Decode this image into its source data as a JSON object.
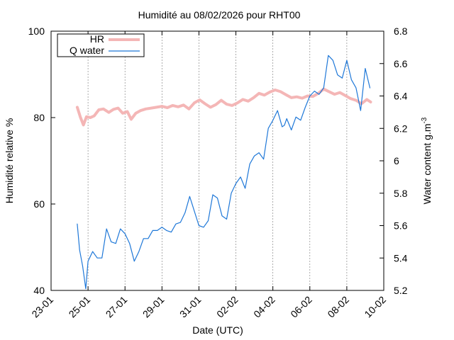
{
  "chart_data": {
    "type": "line",
    "title": "Humidité au 08/02/2026 pour RHT00",
    "xlabel": "Date (UTC)",
    "ylabel": "Humidité relative %",
    "y2label_main": "Water content g.m",
    "y2label_sup": "-3",
    "xlim": [
      "2026-01-23",
      "2026-02-10"
    ],
    "x_ticks": [
      "2026-01-23",
      "2026-01-25",
      "2026-01-27",
      "2026-01-29",
      "2026-01-31",
      "2026-02-02",
      "2026-02-04",
      "2026-02-06",
      "2026-02-08",
      "2026-02-10"
    ],
    "x_tick_labels": [
      "23-01",
      "25-01",
      "27-01",
      "29-01",
      "31-01",
      "02-02",
      "04-02",
      "06-02",
      "08-02",
      "10-02"
    ],
    "ylim": [
      40,
      100
    ],
    "y_ticks": [
      40,
      60,
      80,
      100
    ],
    "y2lim": [
      5.2,
      6.8
    ],
    "y2_ticks": [
      "5.2",
      "5.4",
      "5.6",
      "5.8",
      "6",
      "6.2",
      "6.4",
      "6.6",
      "6.8"
    ],
    "grid": "vertical dashed",
    "legend_position": "top-left",
    "series": [
      {
        "name": "HR",
        "axis": "left",
        "color": "#f4b6b6",
        "x": [
          "2026-01-24 10:00",
          "2026-01-24 14:00",
          "2026-01-24 18:00",
          "2026-01-24 22:00",
          "2026-01-25 03:00",
          "2026-01-25 08:00",
          "2026-01-25 14:00",
          "2026-01-25 20:00",
          "2026-01-26 03:00",
          "2026-01-26 09:00",
          "2026-01-26 15:00",
          "2026-01-26 21:00",
          "2026-01-27 03:00",
          "2026-01-27 08:00",
          "2026-01-27 14:00",
          "2026-01-27 20:00",
          "2026-01-28 03:00",
          "2026-01-28 10:00",
          "2026-01-28 17:00",
          "2026-01-29 00:00",
          "2026-01-29 07:00",
          "2026-01-29 14:00",
          "2026-01-29 21:00",
          "2026-01-30 04:00",
          "2026-01-30 11:00",
          "2026-01-30 18:00",
          "2026-01-31 01:00",
          "2026-01-31 08:00",
          "2026-01-31 15:00",
          "2026-01-31 22:00",
          "2026-02-01 05:00",
          "2026-02-01 12:00",
          "2026-02-01 19:00",
          "2026-02-02 02:00",
          "2026-02-02 09:00",
          "2026-02-02 16:00",
          "2026-02-02 23:00",
          "2026-02-03 06:00",
          "2026-02-03 13:00",
          "2026-02-03 20:00",
          "2026-02-04 03:00",
          "2026-02-04 10:00",
          "2026-02-04 17:00",
          "2026-02-05 00:00",
          "2026-02-05 07:00",
          "2026-02-05 14:00",
          "2026-02-05 21:00",
          "2026-02-06 04:00",
          "2026-02-06 11:00",
          "2026-02-06 18:00",
          "2026-02-07 01:00",
          "2026-02-07 08:00",
          "2026-02-07 15:00",
          "2026-02-07 22:00",
          "2026-02-08 05:00",
          "2026-02-08 12:00",
          "2026-02-08 19:00",
          "2026-02-09 02:00",
          "2026-02-09 07:00"
        ],
        "values": [
          82.4,
          80.1,
          78.3,
          80.2,
          80.0,
          80.4,
          81.8,
          82.0,
          81.2,
          81.9,
          82.2,
          81.0,
          81.4,
          79.6,
          81.0,
          81.6,
          82.0,
          82.2,
          82.4,
          82.6,
          82.3,
          82.8,
          82.5,
          82.9,
          82.0,
          83.4,
          84.1,
          83.2,
          82.4,
          83.0,
          84.0,
          83.1,
          82.8,
          83.4,
          84.2,
          83.8,
          84.6,
          85.6,
          85.2,
          85.9,
          86.4,
          86.0,
          85.3,
          84.6,
          84.8,
          84.5,
          85.0,
          84.9,
          85.6,
          86.6,
          86.0,
          85.4,
          85.8,
          85.1,
          84.4,
          84.0,
          83.2,
          84.2,
          83.6
        ]
      },
      {
        "name": "Q water",
        "axis": "right",
        "color": "#1f78d8",
        "x": [
          "2026-01-24 10:00",
          "2026-01-24 13:00",
          "2026-01-24 17:00",
          "2026-01-24 21:00",
          "2026-01-25 00:00",
          "2026-01-25 06:00",
          "2026-01-25 12:00",
          "2026-01-25 18:00",
          "2026-01-26 00:00",
          "2026-01-26 06:00",
          "2026-01-26 12:00",
          "2026-01-26 18:00",
          "2026-01-27 00:00",
          "2026-01-27 06:00",
          "2026-01-27 12:00",
          "2026-01-27 18:00",
          "2026-01-28 00:00",
          "2026-01-28 06:00",
          "2026-01-28 12:00",
          "2026-01-28 18:00",
          "2026-01-29 00:00",
          "2026-01-29 06:00",
          "2026-01-29 12:00",
          "2026-01-29 18:00",
          "2026-01-30 00:00",
          "2026-01-30 06:00",
          "2026-01-30 12:00",
          "2026-01-30 18:00",
          "2026-01-31 00:00",
          "2026-01-31 06:00",
          "2026-01-31 12:00",
          "2026-01-31 18:00",
          "2026-02-01 00:00",
          "2026-02-01 06:00",
          "2026-02-01 12:00",
          "2026-02-01 18:00",
          "2026-02-02 00:00",
          "2026-02-02 06:00",
          "2026-02-02 12:00",
          "2026-02-02 18:00",
          "2026-02-03 00:00",
          "2026-02-03 06:00",
          "2026-02-03 12:00",
          "2026-02-03 18:00",
          "2026-02-04 00:00",
          "2026-02-04 06:00",
          "2026-02-04 12:00",
          "2026-02-04 15:00",
          "2026-02-04 18:00",
          "2026-02-05 00:00",
          "2026-02-05 06:00",
          "2026-02-05 12:00",
          "2026-02-05 18:00",
          "2026-02-06 00:00",
          "2026-02-06 06:00",
          "2026-02-06 12:00",
          "2026-02-06 18:00",
          "2026-02-07 00:00",
          "2026-02-07 06:00",
          "2026-02-07 12:00",
          "2026-02-07 18:00",
          "2026-02-08 00:00",
          "2026-02-08 06:00",
          "2026-02-08 12:00",
          "2026-02-08 18:00",
          "2026-02-09 00:00",
          "2026-02-09 06:00"
        ],
        "values": [
          5.61,
          5.45,
          5.35,
          5.21,
          5.38,
          5.44,
          5.4,
          5.4,
          5.58,
          5.5,
          5.49,
          5.58,
          5.55,
          5.49,
          5.38,
          5.44,
          5.52,
          5.52,
          5.57,
          5.57,
          5.59,
          5.57,
          5.56,
          5.61,
          5.62,
          5.68,
          5.78,
          5.69,
          5.6,
          5.59,
          5.63,
          5.79,
          5.77,
          5.66,
          5.64,
          5.8,
          5.86,
          5.9,
          5.83,
          5.98,
          6.03,
          6.05,
          6.01,
          6.2,
          6.25,
          6.31,
          6.21,
          6.22,
          6.26,
          6.19,
          6.27,
          6.25,
          6.33,
          6.4,
          6.43,
          6.41,
          6.45,
          6.65,
          6.62,
          6.53,
          6.51,
          6.62,
          6.5,
          6.45,
          6.31,
          6.57,
          6.45
        ]
      }
    ]
  }
}
